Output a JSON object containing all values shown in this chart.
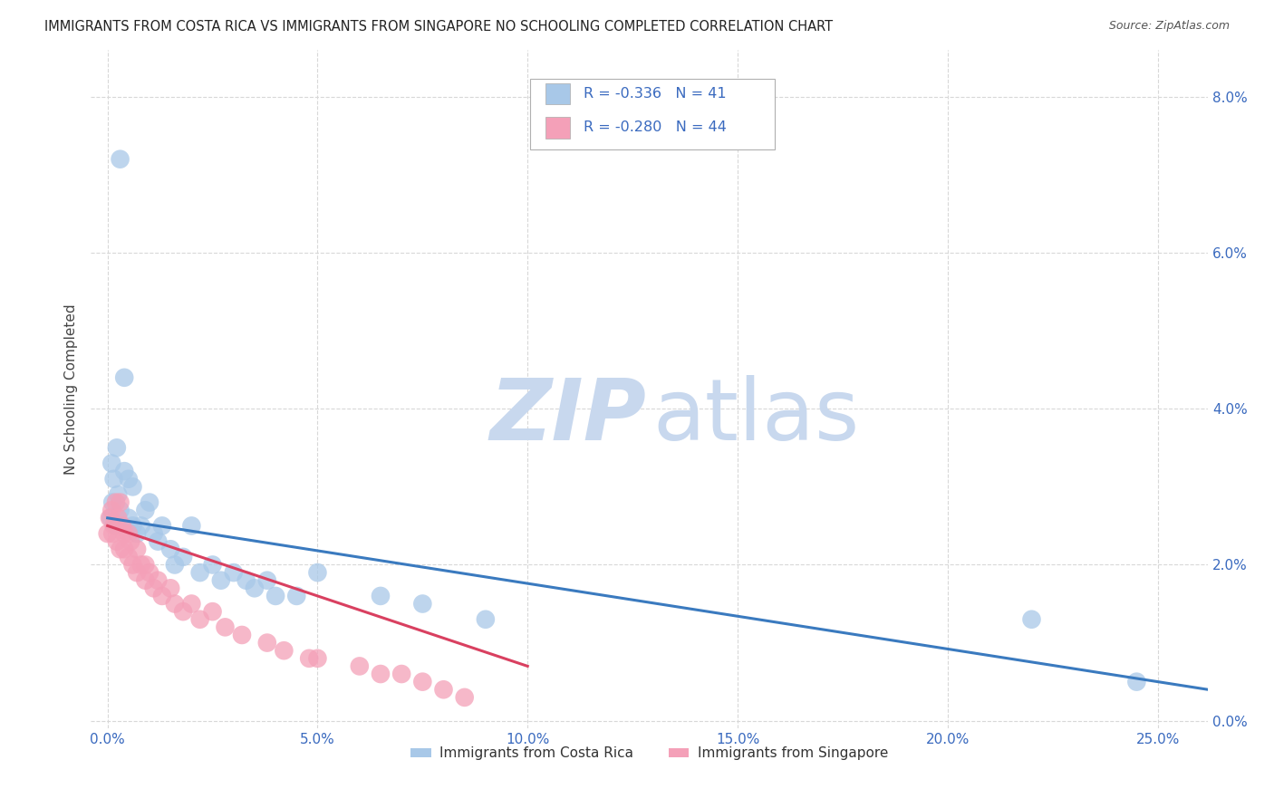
{
  "title": "IMMIGRANTS FROM COSTA RICA VS IMMIGRANTS FROM SINGAPORE NO SCHOOLING COMPLETED CORRELATION CHART",
  "source": "Source: ZipAtlas.com",
  "ylabel": "No Schooling Completed",
  "x_ticks": [
    0.0,
    0.05,
    0.1,
    0.15,
    0.2,
    0.25
  ],
  "x_tick_labels": [
    "0.0%",
    "5.0%",
    "10.0%",
    "15.0%",
    "20.0%",
    "25.0%"
  ],
  "y_ticks": [
    0.0,
    0.02,
    0.04,
    0.06,
    0.08
  ],
  "y_tick_labels": [
    "0.0%",
    "2.0%",
    "4.0%",
    "6.0%",
    "8.0%"
  ],
  "xlim": [
    -0.004,
    0.262
  ],
  "ylim": [
    -0.001,
    0.086
  ],
  "costa_rica_R": -0.336,
  "costa_rica_N": 41,
  "singapore_R": -0.28,
  "singapore_N": 44,
  "costa_rica_color": "#a8c8e8",
  "singapore_color": "#f4a0b8",
  "costa_rica_line_color": "#3a7abf",
  "singapore_line_color": "#d94060",
  "legend_color_blue": "#a8c8e8",
  "legend_color_pink": "#f4a0b8",
  "stat_text_color": "#3a6abf",
  "watermark_zip_color": "#c8d8ee",
  "watermark_atlas_color": "#c8d8ee",
  "background_color": "#ffffff",
  "grid_color": "#d8d8d8",
  "costa_rica_x": [
    0.0008,
    0.001,
    0.0012,
    0.0015,
    0.002,
    0.0022,
    0.0025,
    0.003,
    0.003,
    0.004,
    0.004,
    0.005,
    0.005,
    0.006,
    0.006,
    0.007,
    0.008,
    0.009,
    0.01,
    0.011,
    0.012,
    0.013,
    0.015,
    0.016,
    0.018,
    0.02,
    0.022,
    0.025,
    0.027,
    0.03,
    0.033,
    0.035,
    0.038,
    0.04,
    0.045,
    0.05,
    0.065,
    0.075,
    0.09,
    0.22,
    0.245
  ],
  "costa_rica_y": [
    0.026,
    0.033,
    0.028,
    0.031,
    0.025,
    0.035,
    0.029,
    0.072,
    0.027,
    0.044,
    0.032,
    0.026,
    0.031,
    0.025,
    0.03,
    0.024,
    0.025,
    0.027,
    0.028,
    0.024,
    0.023,
    0.025,
    0.022,
    0.02,
    0.021,
    0.025,
    0.019,
    0.02,
    0.018,
    0.019,
    0.018,
    0.017,
    0.018,
    0.016,
    0.016,
    0.019,
    0.016,
    0.015,
    0.013,
    0.013,
    0.005
  ],
  "singapore_x": [
    0.0,
    0.0005,
    0.001,
    0.0012,
    0.0015,
    0.002,
    0.0022,
    0.0025,
    0.003,
    0.003,
    0.0035,
    0.004,
    0.004,
    0.005,
    0.005,
    0.0055,
    0.006,
    0.007,
    0.007,
    0.008,
    0.009,
    0.009,
    0.01,
    0.011,
    0.012,
    0.013,
    0.015,
    0.016,
    0.018,
    0.02,
    0.022,
    0.025,
    0.028,
    0.032,
    0.038,
    0.042,
    0.048,
    0.05,
    0.06,
    0.065,
    0.07,
    0.075,
    0.08,
    0.085
  ],
  "singapore_y": [
    0.024,
    0.026,
    0.027,
    0.024,
    0.025,
    0.028,
    0.023,
    0.026,
    0.028,
    0.022,
    0.025,
    0.024,
    0.022,
    0.024,
    0.021,
    0.023,
    0.02,
    0.022,
    0.019,
    0.02,
    0.02,
    0.018,
    0.019,
    0.017,
    0.018,
    0.016,
    0.017,
    0.015,
    0.014,
    0.015,
    0.013,
    0.014,
    0.012,
    0.011,
    0.01,
    0.009,
    0.008,
    0.008,
    0.007,
    0.006,
    0.006,
    0.005,
    0.004,
    0.003
  ],
  "cr_line_x0": 0.0,
  "cr_line_y0": 0.026,
  "cr_line_x1": 0.262,
  "cr_line_y1": 0.004,
  "sg_line_x0": 0.0,
  "sg_line_y0": 0.025,
  "sg_line_x1": 0.1,
  "sg_line_y1": 0.007
}
